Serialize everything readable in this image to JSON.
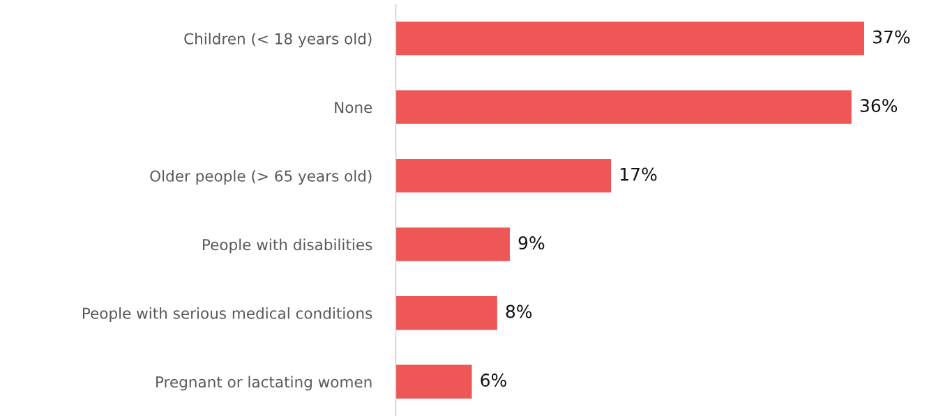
{
  "chart_data": {
    "type": "bar",
    "orientation": "horizontal",
    "categories": [
      "Children (< 18 years old)",
      "None",
      "Older people (> 65 years old)",
      "People with disabilities",
      "People with serious medical conditions",
      "Pregnant or lactating women"
    ],
    "values": [
      37,
      36,
      17,
      9,
      8,
      6
    ],
    "value_labels": [
      "37%",
      "36%",
      "17%",
      "9%",
      "8%",
      "6%"
    ],
    "color": "#ef5757",
    "grid": false,
    "legend": false
  }
}
